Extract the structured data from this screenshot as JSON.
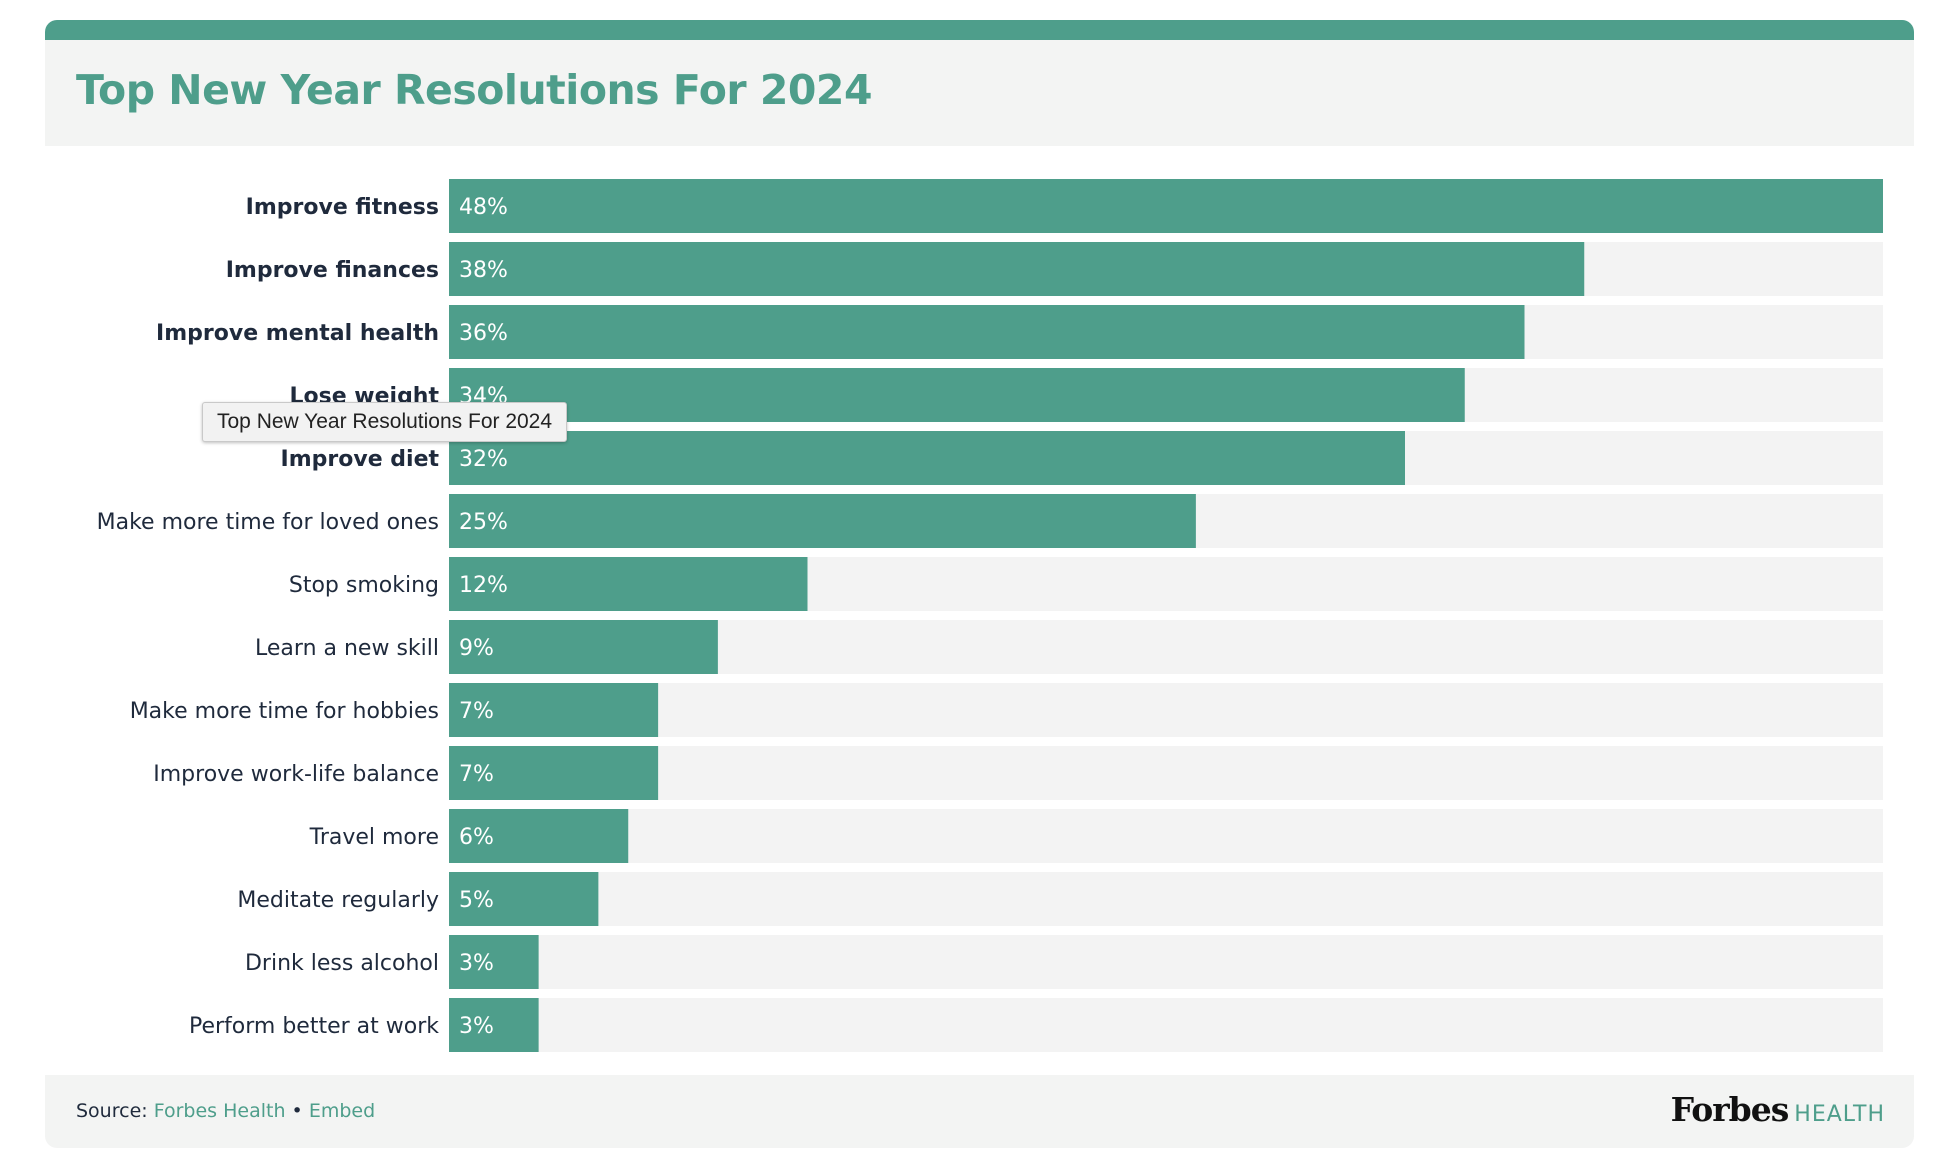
{
  "header": {
    "title": "Top New Year Resolutions For 2024"
  },
  "tooltip": {
    "text": "Top New Year Resolutions For 2024"
  },
  "footer": {
    "source_label": "Source:",
    "source_link": "Forbes Health",
    "separator": "•",
    "embed_link": "Embed",
    "brand_name": "Forbes",
    "brand_suffix": "HEALTH"
  },
  "colors": {
    "accent": "#4e9e8b",
    "track": "#f3f3f3",
    "text": "#1f2a3c",
    "panel": "#f3f4f3"
  },
  "chart_data": {
    "type": "bar",
    "orientation": "horizontal",
    "title": "Top New Year Resolutions For 2024",
    "categories": [
      "Improve fitness",
      "Improve finances",
      "Improve mental health",
      "Lose weight",
      "Improve diet",
      "Make more time for loved ones",
      "Stop smoking",
      "Learn a new skill",
      "Make more time for hobbies",
      "Improve work-life balance",
      "Travel more",
      "Meditate regularly",
      "Drink less alcohol",
      "Perform better at work"
    ],
    "values": [
      48,
      38,
      36,
      34,
      32,
      25,
      12,
      9,
      7,
      7,
      6,
      5,
      3,
      3
    ],
    "value_labels": [
      "48%",
      "38%",
      "36%",
      "34%",
      "32%",
      "25%",
      "12%",
      "9%",
      "7%",
      "7%",
      "6%",
      "5%",
      "3%",
      "3%"
    ],
    "bold_categories": [
      "Improve fitness",
      "Improve finances",
      "Improve mental health",
      "Lose weight",
      "Improve diet"
    ],
    "unit": "%",
    "xlim": [
      0,
      48
    ],
    "grid": false,
    "legend": "none"
  }
}
